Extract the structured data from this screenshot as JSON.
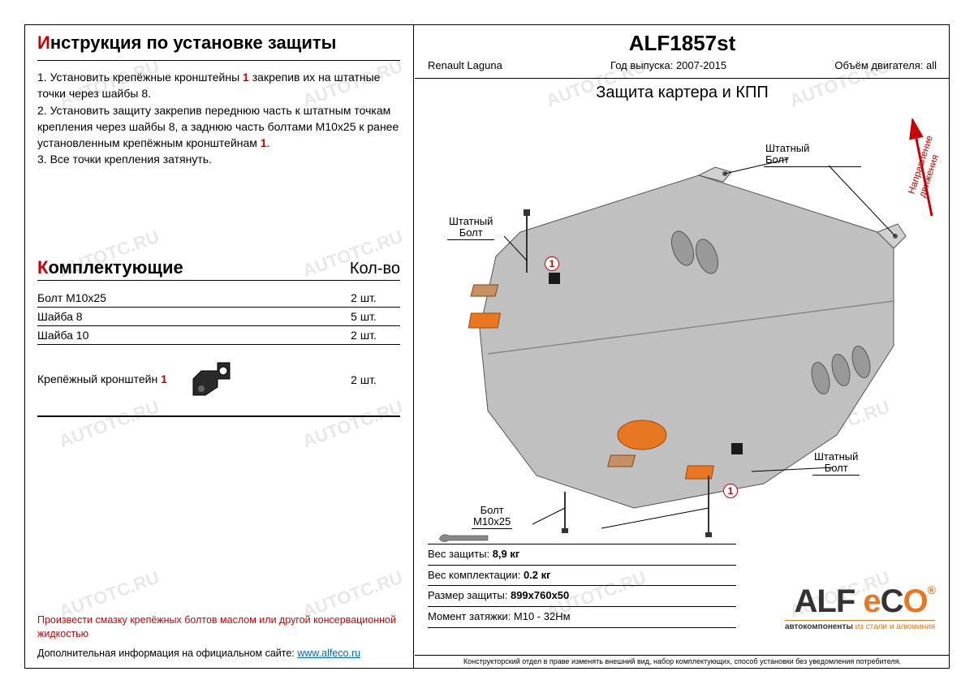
{
  "watermark_text": "AUTOTC.RU",
  "left": {
    "instructions_title_red": "И",
    "instructions_title_rest": "нструкция по установке защиты",
    "instructions_html": "1.  Установить крепёжные кронштейны <span class='red'>1</span> закрепив их на штатные точки через шайбы 8.\n2.  Установить защиту закрепив переднюю часть к штатным точкам крепления через шайбы 8, а заднюю часть болтами М10х25 к ранее установленным крепёжным кронштейнам <span class='red'>1</span>.\n3.  Все точки крепления затянуть.",
    "parts_title_red": "К",
    "parts_title_rest": "омплектующие",
    "qty_header": "Кол-во",
    "parts": [
      {
        "name": "Болт М10х25",
        "qty": "2 шт."
      },
      {
        "name": "Шайба 8",
        "qty": "5 шт."
      },
      {
        "name": "Шайба 10",
        "qty": "2 шт."
      }
    ],
    "bracket_name_prefix": "Крепёжный кронштейн ",
    "bracket_num": "1",
    "bracket_qty": "2 шт.",
    "footer_red": "Произвести смазку крепёжных болтов маслом или другой консервационной жидкостью",
    "footer_info": "Дополнительная информация на официальном сайте: ",
    "footer_url": "www.alfeco.ru"
  },
  "right": {
    "part_no": "ALF1857st",
    "meta": {
      "car": "Renault Laguna",
      "year_label": "Год выпуска: ",
      "year": "2007-2015",
      "engine_label": "Объём двигателя: ",
      "engine": "all"
    },
    "diagram_title": "Защита картера и КПП",
    "direction_label": "Направление\nдвижения",
    "callouts": {
      "std_bolt": "Штатный\nБолт",
      "bolt_m10": "Болт\nМ10х25"
    },
    "specs": {
      "weight_label": "Вес защиты: ",
      "weight": "8,9 кг",
      "kit_weight_label": "Вес комплектации: ",
      "kit_weight": "0.2 кг",
      "size_label": "Размер защиты: ",
      "size": "899х760х50",
      "torque_label": "Момент затяжки:  ",
      "torque": "М10 - 32Нм"
    },
    "logo": {
      "brand": "ALF eco",
      "tagline": "автокомпоненты из стали и алюминия"
    },
    "disclaimer": "Конструкторский отдел в праве изменять внешний вид, набор комплектующих, способ установки без уведомления потребителя."
  },
  "colors": {
    "red": "#cc0000",
    "orange": "#e87722",
    "grey": "#b8b8b8",
    "black": "#000000"
  }
}
